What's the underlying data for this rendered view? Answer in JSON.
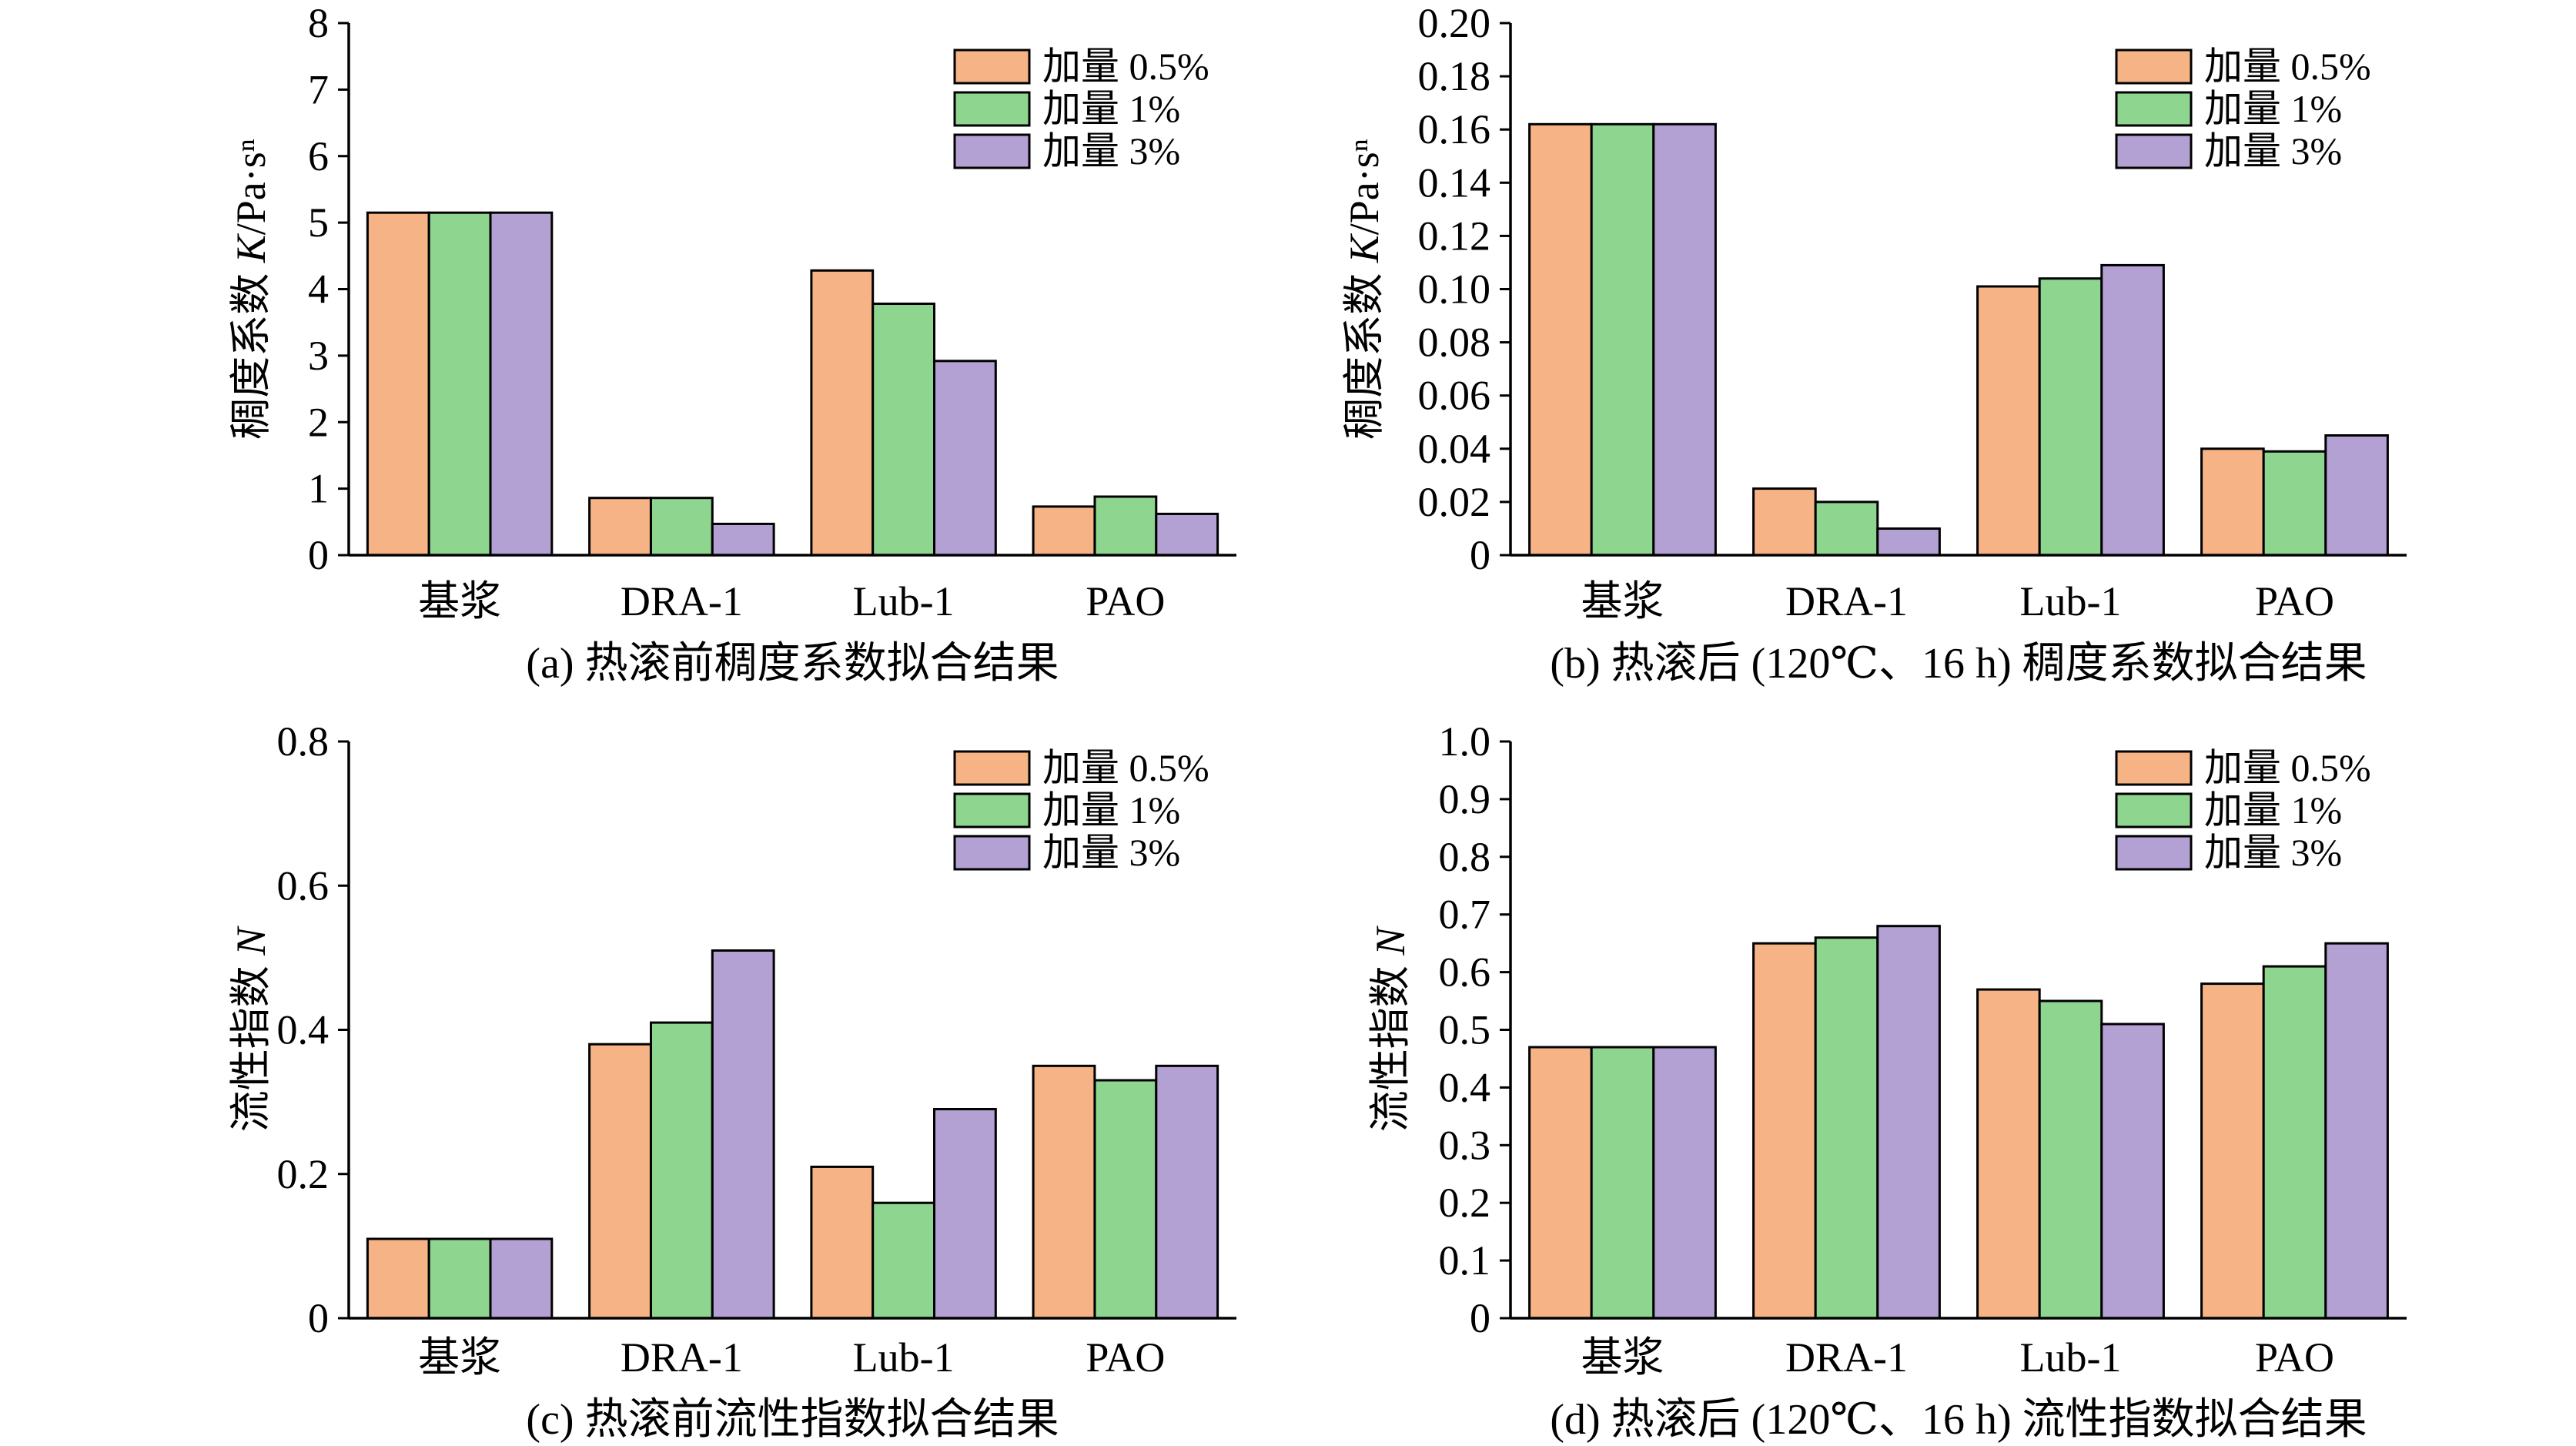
{
  "chart_data": [
    {
      "type": "bar",
      "title": "(a) 热滚前稠度系数拟合结果",
      "ylabel": "稠度系数 K/Pa·sⁿ",
      "categories": [
        "基浆",
        "DRA-1",
        "Lub-1",
        "PAO"
      ],
      "series": [
        {
          "name": "加量 0.5%",
          "color": "#F6B486",
          "values": [
            5.15,
            0.86,
            4.28,
            0.73
          ]
        },
        {
          "name": "加量 1%",
          "color": "#8ED58F",
          "values": [
            5.15,
            0.86,
            3.78,
            0.88
          ]
        },
        {
          "name": "加量 3%",
          "color": "#B3A1D4",
          "values": [
            5.15,
            0.47,
            2.92,
            0.62
          ]
        }
      ],
      "ylim": [
        0,
        8
      ],
      "ytick_labels": [
        "0",
        "1",
        "2",
        "3",
        "4",
        "5",
        "6",
        "7",
        "8"
      ],
      "grid": false,
      "legend": "top-right"
    },
    {
      "type": "bar",
      "title": "(b) 热滚后 (120℃、16 h) 稠度系数拟合结果",
      "ylabel": "稠度系数 K/Pa·sⁿ",
      "categories": [
        "基浆",
        "DRA-1",
        "Lub-1",
        "PAO"
      ],
      "series": [
        {
          "name": "加量 0.5%",
          "color": "#F6B486",
          "values": [
            0.162,
            0.025,
            0.101,
            0.04
          ]
        },
        {
          "name": "加量 1%",
          "color": "#8ED58F",
          "values": [
            0.162,
            0.02,
            0.104,
            0.039
          ]
        },
        {
          "name": "加量 3%",
          "color": "#B3A1D4",
          "values": [
            0.162,
            0.01,
            0.109,
            0.045
          ]
        }
      ],
      "ylim": [
        0,
        0.2
      ],
      "ytick_labels": [
        "0",
        "0.02",
        "0.04",
        "0.06",
        "0.08",
        "0.10",
        "0.12",
        "0.14",
        "0.16",
        "0.18",
        "0.20"
      ],
      "grid": false,
      "legend": "top-right"
    },
    {
      "type": "bar",
      "title": "(c) 热滚前流性指数拟合结果",
      "ylabel": "流性指数 N",
      "categories": [
        "基浆",
        "DRA-1",
        "Lub-1",
        "PAO"
      ],
      "series": [
        {
          "name": "加量 0.5%",
          "color": "#F6B486",
          "values": [
            0.11,
            0.38,
            0.21,
            0.35
          ]
        },
        {
          "name": "加量 1%",
          "color": "#8ED58F",
          "values": [
            0.11,
            0.41,
            0.16,
            0.33
          ]
        },
        {
          "name": "加量 3%",
          "color": "#B3A1D4",
          "values": [
            0.11,
            0.51,
            0.29,
            0.35
          ]
        }
      ],
      "ylim": [
        0,
        0.8
      ],
      "ytick_labels": [
        "0",
        "0.2",
        "0.4",
        "0.6",
        "0.8"
      ],
      "grid": false,
      "legend": "top-right"
    },
    {
      "type": "bar",
      "title": "(d) 热滚后 (120℃、16 h) 流性指数拟合结果",
      "ylabel": "流性指数 N",
      "categories": [
        "基浆",
        "DRA-1",
        "Lub-1",
        "PAO"
      ],
      "series": [
        {
          "name": "加量 0.5%",
          "color": "#F6B486",
          "values": [
            0.47,
            0.65,
            0.57,
            0.58
          ]
        },
        {
          "name": "加量 1%",
          "color": "#8ED58F",
          "values": [
            0.47,
            0.66,
            0.55,
            0.61
          ]
        },
        {
          "name": "加量 3%",
          "color": "#B3A1D4",
          "values": [
            0.47,
            0.68,
            0.51,
            0.65
          ]
        }
      ],
      "ylim": [
        0,
        1.0
      ],
      "ytick_labels": [
        "0",
        "0.1",
        "0.2",
        "0.3",
        "0.4",
        "0.5",
        "0.6",
        "0.7",
        "0.8",
        "0.9",
        "1.0"
      ],
      "grid": false,
      "legend": "top-right"
    }
  ]
}
